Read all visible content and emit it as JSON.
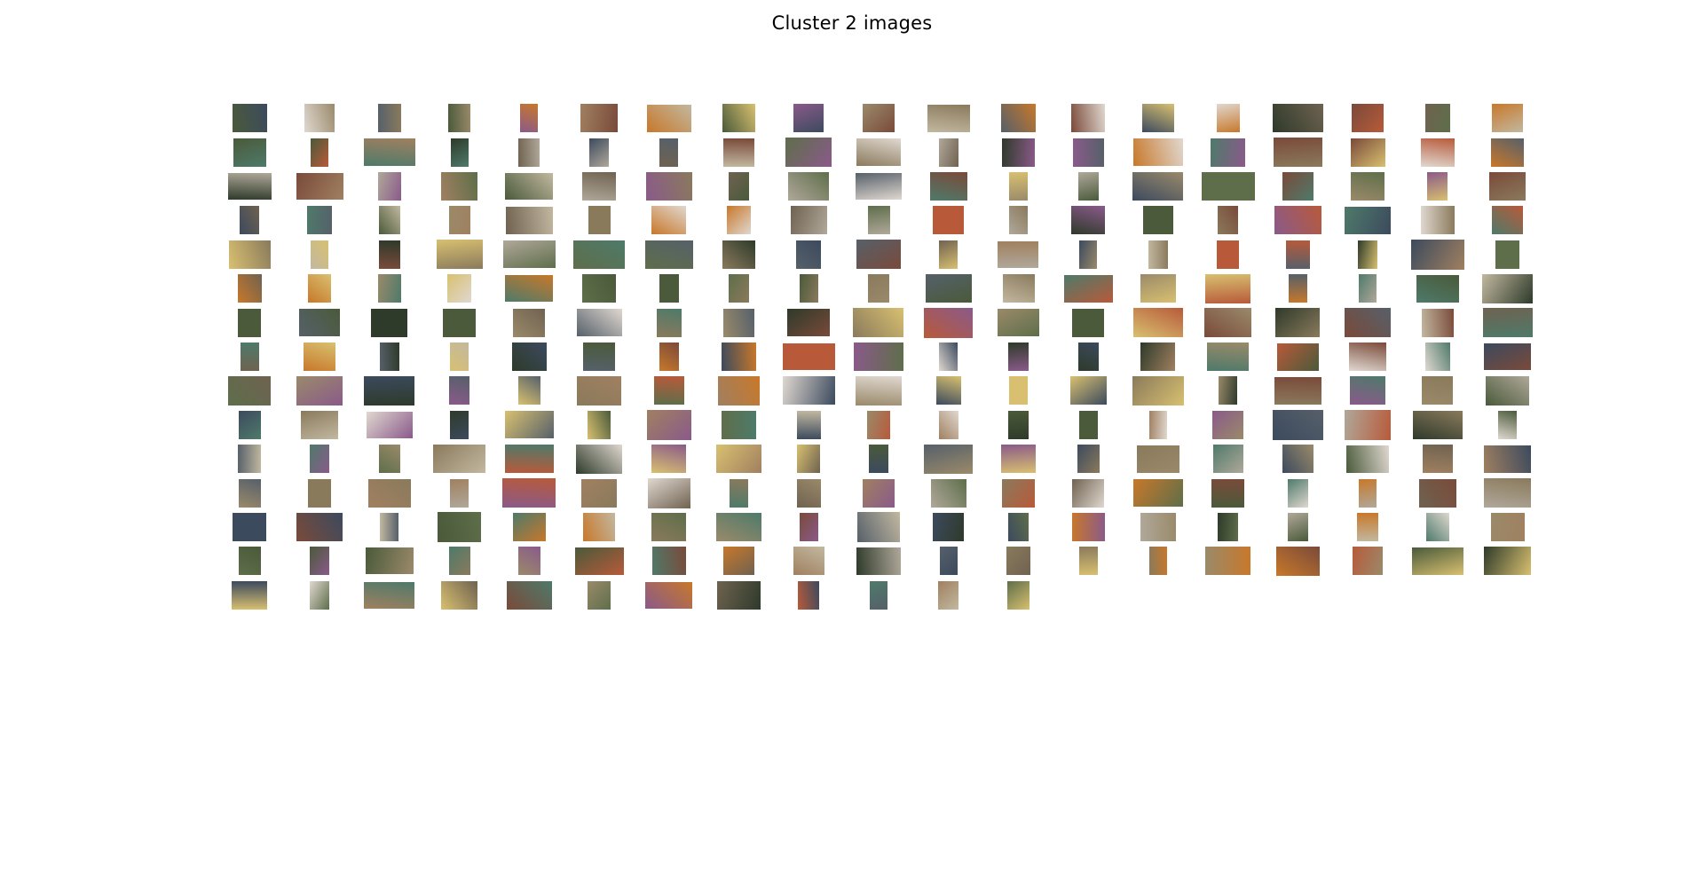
{
  "figure": {
    "title": "Cluster 2 images"
  },
  "grid": {
    "columns": 19,
    "rows": 15,
    "thumbnail_count": 278
  },
  "colors": {
    "background": "#ffffff",
    "title": "#000000",
    "thumb_palette": [
      "#6f6250",
      "#8a7a5c",
      "#4a5a3a",
      "#a08060",
      "#3c4a5e",
      "#b0a89a",
      "#5e6e4a",
      "#7a4a3a",
      "#c2b8a0",
      "#2e3a2a",
      "#9a8a6a",
      "#56606a",
      "#b85a3a",
      "#d8c070",
      "#4e7a6a",
      "#e0d8d0",
      "#8a5a8a",
      "#c8782a"
    ]
  }
}
